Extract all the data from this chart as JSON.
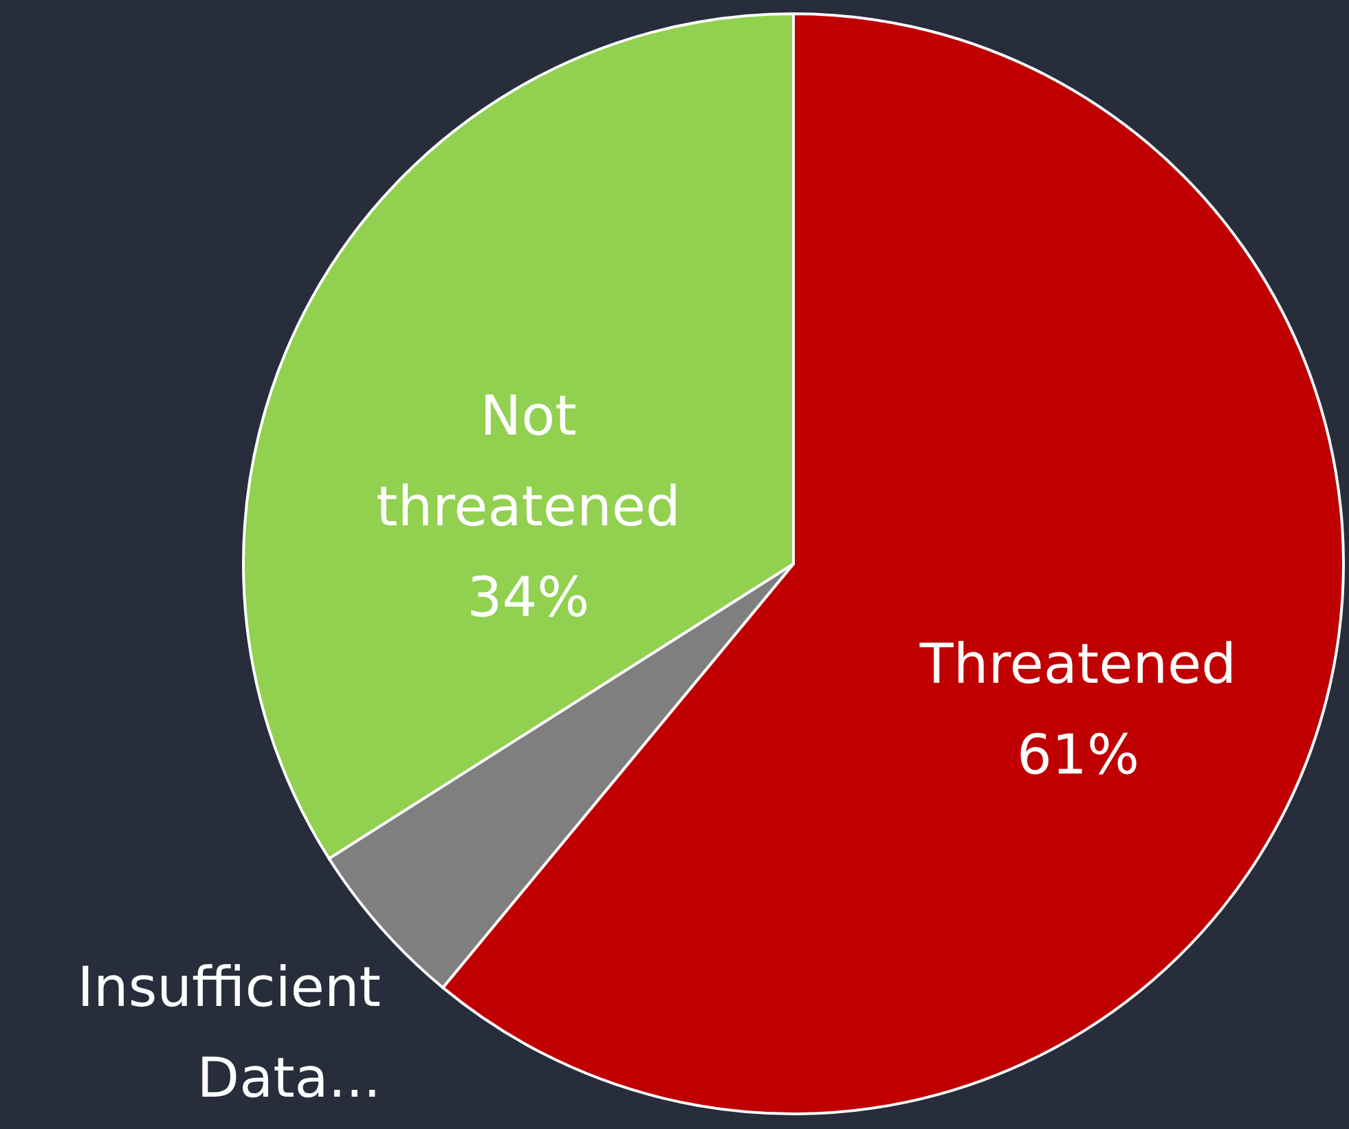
{
  "chart_data": {
    "type": "pie",
    "categories": [
      "Threatened",
      "Insufficient Data...",
      "Not threatened"
    ],
    "values": [
      61,
      5,
      34
    ],
    "colors": [
      "#c00000",
      "#7f7f7f",
      "#92d050"
    ],
    "value_labels": [
      "61%",
      null,
      "34%"
    ]
  }
}
